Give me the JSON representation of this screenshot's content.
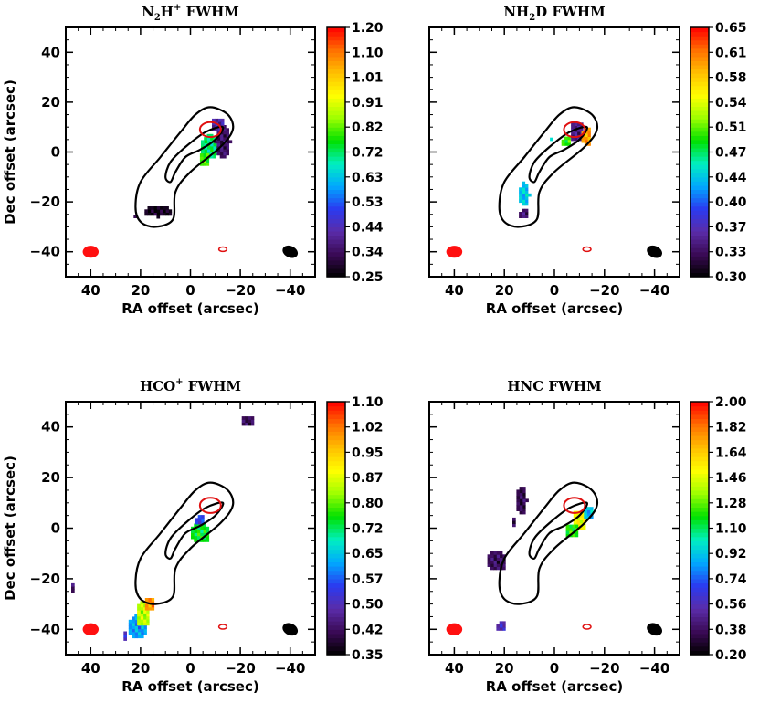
{
  "figure": {
    "colorscale": [
      "#000000",
      "#3a0a55",
      "#5a2ca8",
      "#2b3af0",
      "#00a8ff",
      "#00f0c0",
      "#00e000",
      "#9cff00",
      "#ffff00",
      "#ffc000",
      "#ff7000",
      "#ff0000"
    ],
    "contour_colors": {
      "cloud": "#000000",
      "core": "#e01010"
    }
  },
  "chart_data": [
    {
      "type": "heatmap",
      "title_main": "N",
      "title_sub1": "2",
      "title_mid": "H",
      "title_sup": "+",
      "title_tail": " FWHM",
      "xlabel": "RA offset (arcsec)",
      "ylabel": "Dec offset (arcsec)",
      "xlim": [
        50,
        -50
      ],
      "ylim": [
        -50,
        50
      ],
      "xticks": [
        "40",
        "20",
        "0",
        "−20",
        "−40"
      ],
      "yticks": [
        "−40",
        "−20",
        "0",
        "20",
        "40"
      ],
      "colorbar": {
        "min": 0.25,
        "max": 1.2,
        "labels": [
          "0.25",
          "0.34",
          "0.44",
          "0.53",
          "0.63",
          "0.72",
          "0.82",
          "0.91",
          "1.01",
          "1.10",
          "1.20"
        ]
      },
      "blobs": [
        {
          "x": -8,
          "y": 2,
          "rx": 4,
          "ry": 5,
          "level": 0.72
        },
        {
          "x": -13,
          "y": 4,
          "rx": 3,
          "ry": 7,
          "level": 0.35
        },
        {
          "x": -11,
          "y": 11,
          "rx": 3,
          "ry": 3,
          "level": 0.42
        },
        {
          "x": -6,
          "y": -3,
          "rx": 2,
          "ry": 3,
          "level": 0.8
        },
        {
          "x": 13,
          "y": -24,
          "rx": 6,
          "ry": 2,
          "level": 0.28
        },
        {
          "x": 22,
          "y": -26,
          "rx": 1,
          "ry": 1,
          "level": 0.4
        }
      ]
    },
    {
      "type": "heatmap",
      "title_main": "NH",
      "title_sub1": "2",
      "title_mid": "D",
      "title_sup": "",
      "title_tail": " FWHM",
      "xlabel": "RA offset (arcsec)",
      "ylabel": "",
      "xlim": [
        50,
        -50
      ],
      "ylim": [
        -50,
        50
      ],
      "xticks": [
        "40",
        "20",
        "0",
        "−20",
        "−40"
      ],
      "yticks": [],
      "colorbar": {
        "min": 0.3,
        "max": 0.65,
        "labels": [
          "0.30",
          "0.33",
          "0.37",
          "0.40",
          "0.44",
          "0.47",
          "0.51",
          "0.54",
          "0.58",
          "0.61",
          "0.65"
        ]
      },
      "blobs": [
        {
          "x": -9,
          "y": 8,
          "rx": 3,
          "ry": 4,
          "level": 0.35
        },
        {
          "x": -13,
          "y": 6,
          "rx": 2,
          "ry": 4,
          "level": 0.6
        },
        {
          "x": -5,
          "y": 4,
          "rx": 2,
          "ry": 2,
          "level": 0.5
        },
        {
          "x": 1,
          "y": 5,
          "rx": 1,
          "ry": 1,
          "level": 0.45
        },
        {
          "x": 12,
          "y": -17,
          "rx": 2,
          "ry": 5,
          "level": 0.44
        },
        {
          "x": 12,
          "y": -25,
          "rx": 2,
          "ry": 2,
          "level": 0.34
        }
      ]
    },
    {
      "type": "heatmap",
      "title_main": "HCO",
      "title_sub1": "",
      "title_mid": "",
      "title_sup": "+",
      "title_tail": " FWHM",
      "xlabel": "RA offset (arcsec)",
      "ylabel": "Dec offset (arcsec)",
      "xlim": [
        50,
        -50
      ],
      "ylim": [
        -50,
        50
      ],
      "xticks": [
        "40",
        "20",
        "0",
        "−20",
        "−40"
      ],
      "yticks": [
        "−40",
        "−20",
        "0",
        "20",
        "40"
      ],
      "colorbar": {
        "min": 0.35,
        "max": 1.1,
        "labels": [
          "0.35",
          "0.42",
          "0.50",
          "0.57",
          "0.65",
          "0.72",
          "0.80",
          "0.87",
          "0.95",
          "1.02",
          "1.10"
        ]
      },
      "blobs": [
        {
          "x": -4,
          "y": -2,
          "rx": 4,
          "ry": 4,
          "level": 0.75
        },
        {
          "x": -4,
          "y": 3,
          "rx": 2,
          "ry": 2,
          "level": 0.55
        },
        {
          "x": -23,
          "y": 42,
          "rx": 3,
          "ry": 2,
          "level": 0.42
        },
        {
          "x": 47,
          "y": -24,
          "rx": 1,
          "ry": 2,
          "level": 0.45
        },
        {
          "x": 21,
          "y": -39,
          "rx": 4,
          "ry": 5,
          "level": 0.62
        },
        {
          "x": 19,
          "y": -34,
          "rx": 3,
          "ry": 5,
          "level": 0.85
        },
        {
          "x": 16,
          "y": -30,
          "rx": 2,
          "ry": 3,
          "level": 1.0
        },
        {
          "x": 26,
          "y": -43,
          "rx": 1,
          "ry": 2,
          "level": 0.5
        }
      ]
    },
    {
      "type": "heatmap",
      "title_main": "HNC",
      "title_sub1": "",
      "title_mid": "",
      "title_sup": "",
      "title_tail": " FWHM",
      "xlabel": "RA offset (arcsec)",
      "ylabel": "",
      "xlim": [
        50,
        -50
      ],
      "ylim": [
        -50,
        50
      ],
      "xticks": [
        "40",
        "20",
        "0",
        "−20",
        "−40"
      ],
      "yticks": [],
      "colorbar": {
        "min": 0.2,
        "max": 2.0,
        "labels": [
          "0.20",
          "0.38",
          "0.56",
          "0.74",
          "0.92",
          "1.10",
          "1.28",
          "1.46",
          "1.64",
          "1.82",
          "2.00"
        ]
      },
      "blobs": [
        {
          "x": -10,
          "y": 3,
          "rx": 3,
          "ry": 4,
          "level": 1.5
        },
        {
          "x": -14,
          "y": 6,
          "rx": 2,
          "ry": 3,
          "level": 0.9
        },
        {
          "x": -7,
          "y": -1,
          "rx": 3,
          "ry": 3,
          "level": 1.2
        },
        {
          "x": 13,
          "y": 11,
          "rx": 2,
          "ry": 6,
          "level": 0.35
        },
        {
          "x": 16,
          "y": 2,
          "rx": 1,
          "ry": 2,
          "level": 0.4
        },
        {
          "x": 23,
          "y": -13,
          "rx": 4,
          "ry": 4,
          "level": 0.38
        },
        {
          "x": 21,
          "y": -39,
          "rx": 2,
          "ry": 2,
          "level": 0.55
        }
      ]
    }
  ]
}
